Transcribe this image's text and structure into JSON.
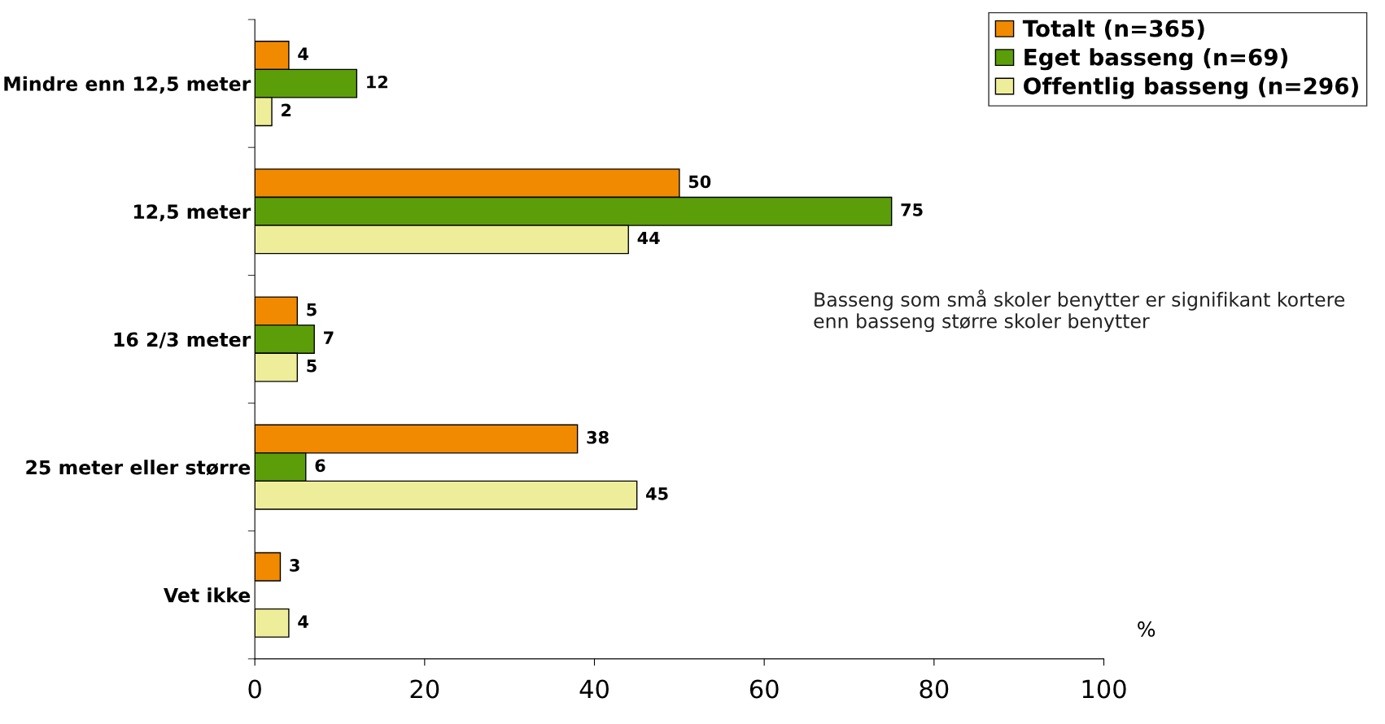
{
  "chart_data": {
    "type": "bar",
    "orientation": "horizontal",
    "categories": [
      "Mindre enn 12,5 meter",
      "12,5 meter",
      "16 2/3 meter",
      "25 meter eller større",
      "Vet ikke"
    ],
    "series": [
      {
        "name": "Totalt (n=365)",
        "color": "#f28a00",
        "values": [
          4,
          50,
          5,
          38,
          3
        ]
      },
      {
        "name": "Eget basseng (n=69)",
        "color": "#5c9e0a",
        "values": [
          12,
          75,
          7,
          6,
          null
        ]
      },
      {
        "name": "Offentlig basseng (n=296)",
        "color": "#eeee9a",
        "values": [
          2,
          44,
          5,
          45,
          4
        ]
      }
    ],
    "xlim": [
      0,
      100
    ],
    "xticks": [
      0,
      20,
      40,
      60,
      80,
      100
    ],
    "xlabel": "%",
    "data_labels": true,
    "grid": false,
    "legend": "top right",
    "annotations": [
      "Basseng som små skoler benytter er signifikant kortere enn basseng større skoler benytter"
    ]
  }
}
